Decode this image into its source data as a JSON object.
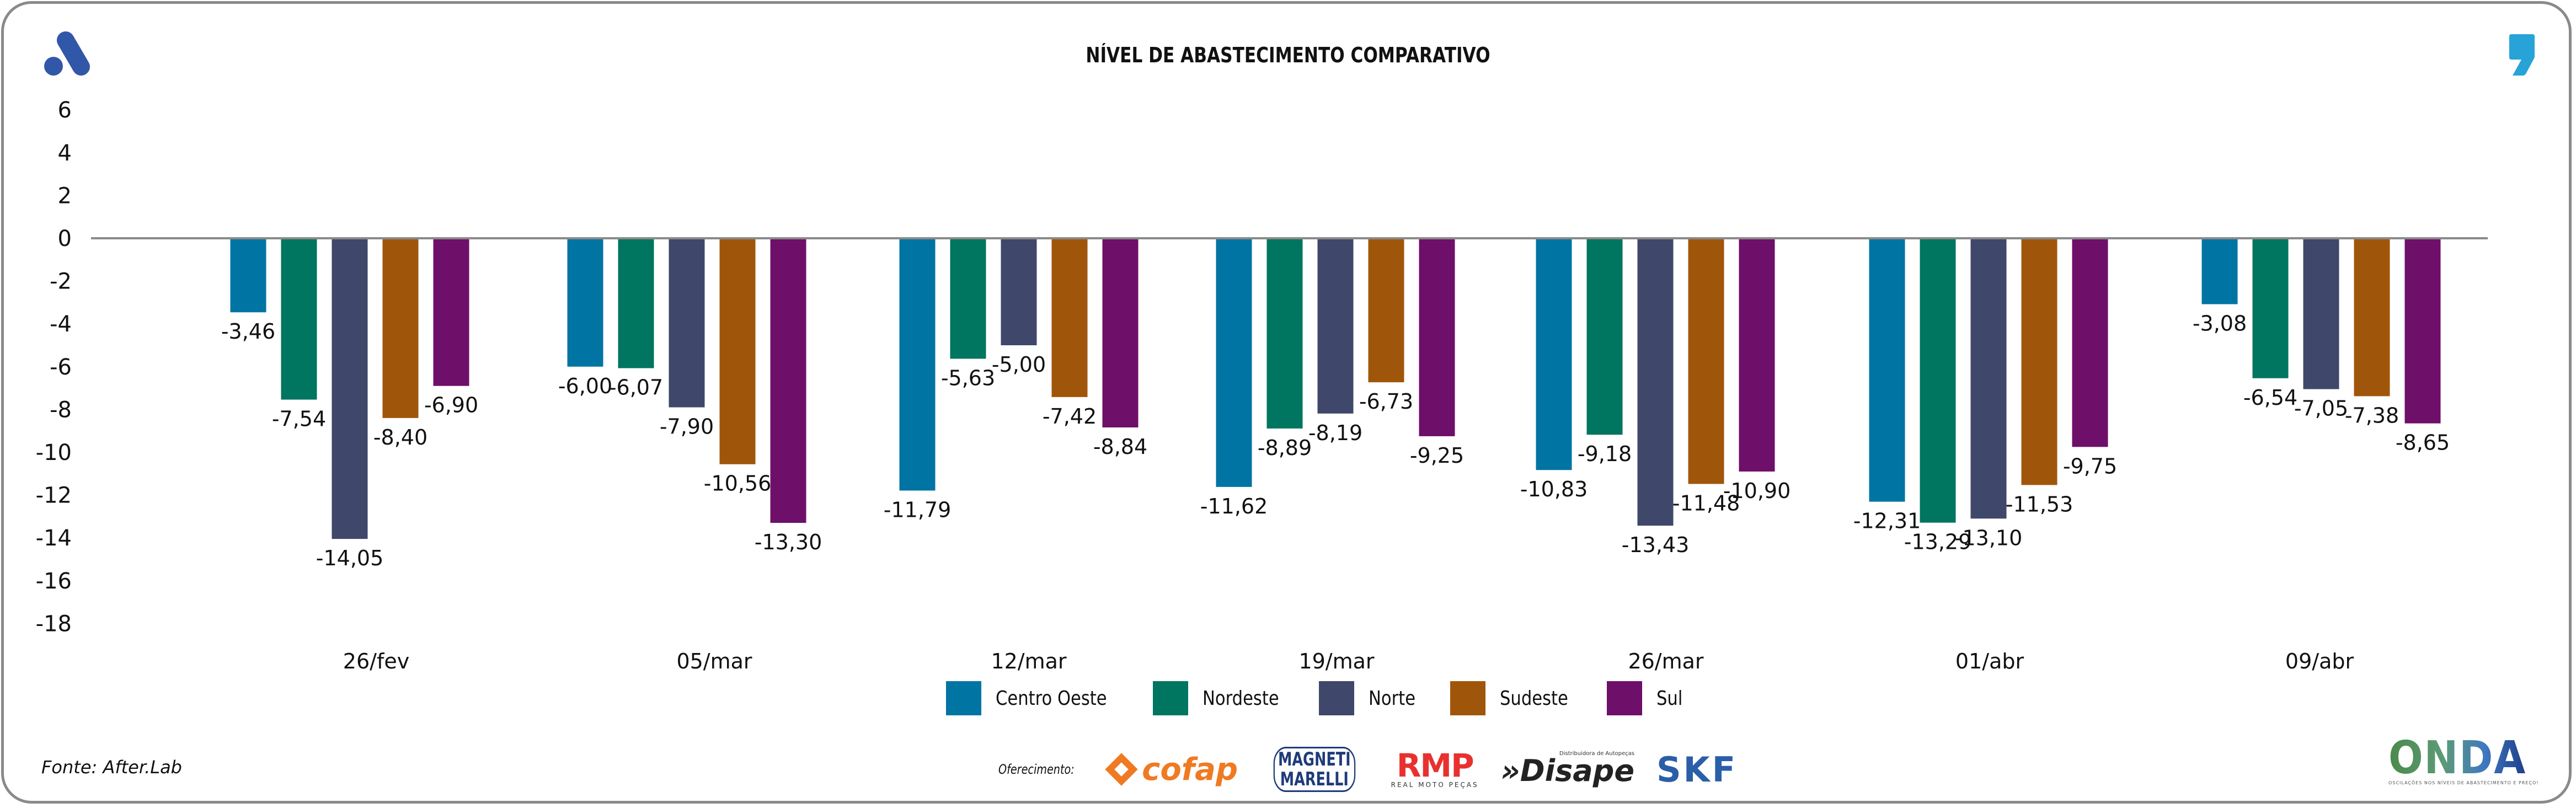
{
  "header": {
    "title": "NÍVEL DE ABASTECIMENTO COMPARATIVO",
    "logo_left": "aftersales-a-logo-icon",
    "logo_right": "comma-quote-logo-icon"
  },
  "colors": {
    "Centro Oeste": "#0074a3",
    "Nordeste": "#00755f",
    "Norte": "#3f476b",
    "Sudeste": "#a0560a",
    "Sul": "#6e0f69",
    "zero_line": "#8a8a8a",
    "logo_blue": "#3157a8",
    "accent_cyan": "#27a3d8"
  },
  "chart_data": {
    "type": "bar",
    "title": "NÍVEL DE ABASTECIMENTO COMPARATIVO",
    "xlabel": "",
    "ylabel": "",
    "ylim": [
      -18,
      6
    ],
    "yticks": [
      6,
      4,
      2,
      0,
      -2,
      -4,
      -6,
      -8,
      -10,
      -12,
      -14,
      -16,
      -18
    ],
    "grid": false,
    "legend_position": "bottom-center",
    "categories": [
      "26/fev",
      "05/mar",
      "12/mar",
      "19/mar",
      "26/mar",
      "01/abr",
      "09/abr"
    ],
    "series": [
      {
        "name": "Centro Oeste",
        "values": [
          -3.46,
          -6.0,
          -11.79,
          -11.62,
          -10.83,
          -12.31,
          -3.08
        ],
        "labels": [
          "-3,46",
          "-6,00",
          "-11,79",
          "-11,62",
          "-10,83",
          "-12,31",
          "-3,08"
        ]
      },
      {
        "name": "Nordeste",
        "values": [
          -7.54,
          -6.07,
          -5.63,
          -8.89,
          -9.18,
          -13.29,
          -6.54
        ],
        "labels": [
          "-7,54",
          "-6,07",
          "-5,63",
          "-8,89",
          "-9,18",
          "-13,29",
          "-6,54"
        ]
      },
      {
        "name": "Norte",
        "values": [
          -14.05,
          -7.9,
          -5.0,
          -8.19,
          -13.43,
          -13.1,
          -7.05
        ],
        "labels": [
          "-14,05",
          "-7,90",
          "-5,00",
          "-8,19",
          "-13,43",
          "-13,10",
          "-7,05"
        ]
      },
      {
        "name": "Sudeste",
        "values": [
          -8.4,
          -10.56,
          -7.42,
          -6.73,
          -11.48,
          -11.53,
          -7.38
        ],
        "labels": [
          "-8,40",
          "-10,56",
          "-7,42",
          "-6,73",
          "-11,48",
          "-11,53",
          "-7,38"
        ]
      },
      {
        "name": "Sul",
        "values": [
          -6.9,
          -13.3,
          -8.84,
          -9.25,
          -10.9,
          -9.75,
          -8.65
        ],
        "labels": [
          "-6,90",
          "-13,30",
          "-8,84",
          "-9,25",
          "-10,90",
          "-9,75",
          "-8,65"
        ]
      }
    ]
  },
  "legend": {
    "items": [
      "Centro Oeste",
      "Nordeste",
      "Norte",
      "Sudeste",
      "Sul"
    ]
  },
  "footer": {
    "source": "Fonte: After.Lab",
    "sponsor_label": "Oferecimento:",
    "sponsors": {
      "cofap": "cofap",
      "magneti_line1": "MAGNETI",
      "magneti_line2": "MARELLI",
      "rmp": "RMP",
      "rmp_sub": "REAL MOTO PEÇAS",
      "disape": "»Disape",
      "disape_sub": "Distribuidora de Autopeças",
      "skf": "SKF"
    },
    "onda": "ONDA",
    "onda_sub": "OSCILAÇÕES NOS NÍVEIS DE ABASTECIMENTO E PREÇO!"
  }
}
